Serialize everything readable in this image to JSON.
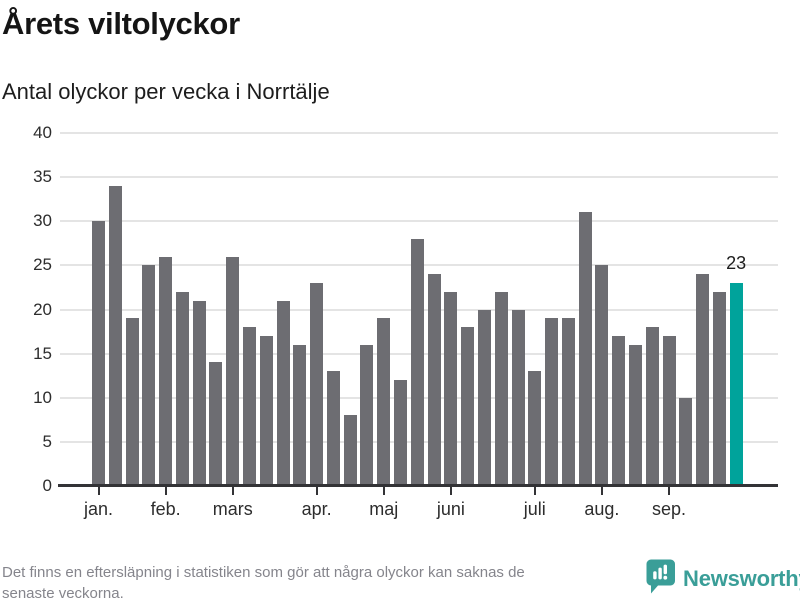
{
  "header": {
    "title": "Årets viltolyckor",
    "subtitle": "Antal olyckor per vecka i Norrtälje"
  },
  "chart_data": {
    "type": "bar",
    "title": "Årets viltolyckor",
    "subtitle": "Antal olyckor per vecka i Norrtälje",
    "values": [
      30,
      34,
      19,
      25,
      26,
      22,
      21,
      14,
      26,
      18,
      17,
      21,
      16,
      23,
      13,
      8,
      16,
      19,
      12,
      28,
      24,
      22,
      18,
      20,
      22,
      20,
      13,
      19,
      19,
      31,
      25,
      17,
      16,
      18,
      17,
      10,
      24,
      22,
      23
    ],
    "highlight_index": 38,
    "highlight_value_label": "23",
    "x_ticks": [
      {
        "label": "jan.",
        "bar_index": 0
      },
      {
        "label": "feb.",
        "bar_index": 4
      },
      {
        "label": "mars",
        "bar_index": 8
      },
      {
        "label": "apr.",
        "bar_index": 13
      },
      {
        "label": "maj",
        "bar_index": 17
      },
      {
        "label": "juni",
        "bar_index": 21
      },
      {
        "label": "juli",
        "bar_index": 26
      },
      {
        "label": "aug.",
        "bar_index": 30
      },
      {
        "label": "sep.",
        "bar_index": 34
      }
    ],
    "y_ticks": [
      0,
      5,
      10,
      15,
      20,
      25,
      30,
      35,
      40
    ],
    "ylim": [
      0,
      40
    ],
    "grid": true,
    "legend": "none",
    "xlabel": "",
    "ylabel": "",
    "bar_color": "#6d6d72",
    "highlight_color": "#00a39b"
  },
  "footer": {
    "note_line1": "Det finns en eftersläpning i statistiken som gör att några olyckor kan saknas de",
    "note_line2": "senaste veckorna.",
    "brand": "Newsworthy"
  },
  "colors": {
    "gridline": "#e4e4e4",
    "axis": "#333336",
    "brand_teal": "#3a9e98"
  }
}
